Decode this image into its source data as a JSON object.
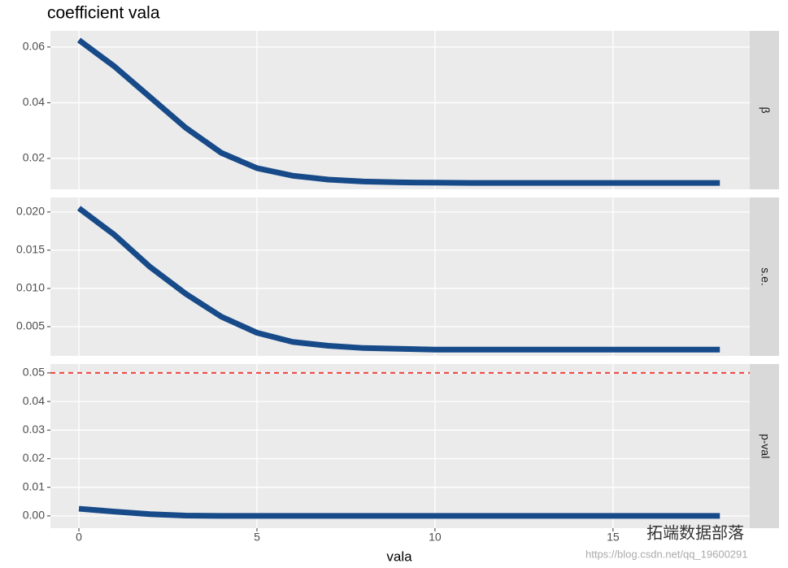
{
  "chart_data": [
    {
      "type": "line",
      "title": "coefficient vala",
      "strip": "β",
      "x": [
        0,
        1,
        2,
        3,
        4,
        5,
        6,
        7,
        8,
        9,
        10,
        11,
        12,
        13,
        14,
        15,
        16,
        17,
        18
      ],
      "series": [
        {
          "color": "#174a88",
          "values": [
            0.0625,
            0.053,
            0.042,
            0.031,
            0.022,
            0.0165,
            0.0138,
            0.0124,
            0.0117,
            0.0114,
            0.0113,
            0.0112,
            0.0112,
            0.0112,
            0.0112,
            0.0112,
            0.0112,
            0.0112,
            0.0112
          ]
        }
      ],
      "xlim": [
        -0.8,
        18.84
      ],
      "xticks": [
        0,
        5,
        10,
        15
      ],
      "ylim": [
        0.0089,
        0.0658
      ],
      "yticks": [
        0.02,
        0.04,
        0.06
      ],
      "grid": true
    },
    {
      "type": "line",
      "strip": "s.e.",
      "x": [
        0,
        1,
        2,
        3,
        4,
        5,
        6,
        7,
        8,
        9,
        10,
        11,
        12,
        13,
        14,
        15,
        16,
        17,
        18
      ],
      "series": [
        {
          "color": "#174a88",
          "values": [
            0.0205,
            0.017,
            0.0128,
            0.0093,
            0.0063,
            0.0042,
            0.003,
            0.0025,
            0.0022,
            0.0021,
            0.002,
            0.002,
            0.002,
            0.002,
            0.002,
            0.002,
            0.002,
            0.002,
            0.002
          ]
        }
      ],
      "xlim": [
        -0.8,
        18.84
      ],
      "xticks": [
        0,
        5,
        10,
        15
      ],
      "ylim": [
        0.00117,
        0.0219
      ],
      "yticks": [
        0.005,
        {
          "value": 0.01,
          "label": "0.010"
        },
        0.015,
        {
          "value": 0.02,
          "label": "0.020"
        }
      ],
      "grid": true
    },
    {
      "type": "line",
      "strip": "p-val",
      "x_label": "vala",
      "x": [
        0,
        1,
        2,
        3,
        4,
        5,
        6,
        7,
        8,
        9,
        10,
        11,
        12,
        13,
        14,
        15,
        16,
        17,
        18
      ],
      "series": [
        {
          "color": "#174a88",
          "values": [
            0.0025,
            0.0015,
            0.0006,
            0.0001,
            0,
            0,
            0,
            0,
            0,
            0,
            0,
            0,
            0,
            0,
            0,
            0,
            0,
            0,
            0
          ]
        }
      ],
      "hline": {
        "value": 0.05,
        "color": "#f0413c"
      },
      "xlim": [
        -0.8,
        18.84
      ],
      "xticks": [
        0,
        5,
        10,
        15
      ],
      "ylim": [
        -0.0043,
        0.0531
      ],
      "yticks": [
        {
          "value": 0,
          "label": "0.00"
        },
        0.01,
        0.02,
        0.03,
        0.04,
        0.05
      ],
      "grid": true
    }
  ],
  "watermark": {
    "brand": "拓端数据部落",
    "url": "https://blog.csdn.net/qq_19600291"
  }
}
